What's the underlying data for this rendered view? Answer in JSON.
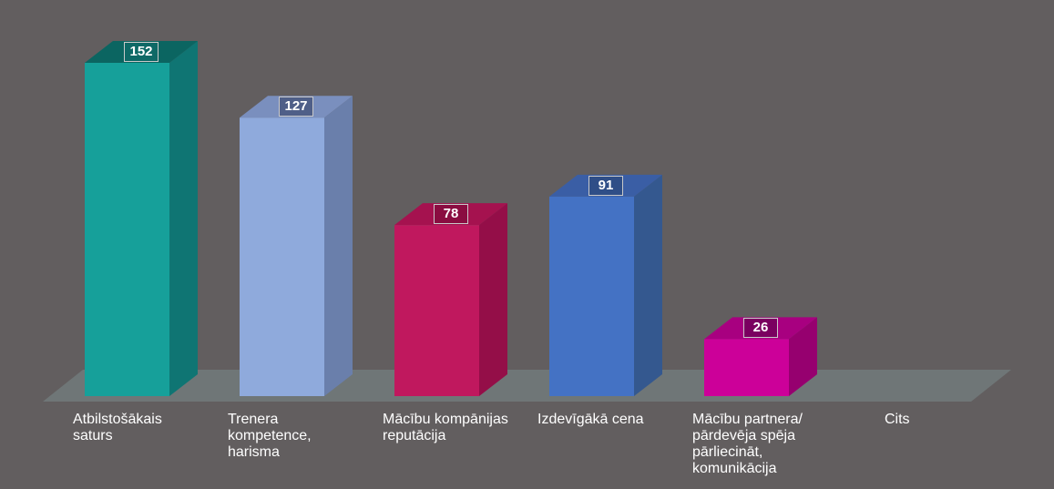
{
  "chart_data": {
    "type": "bar",
    "style": "3d",
    "categories": [
      "Atbilstošākais\nsaturs",
      "Trenera\nkompetence,\nharisma",
      "Mācību kompānijas\nreputācija",
      "Izdevīgākā cena",
      "Mācību partnera/\npārdevēja spēja\npārliecināt,\nkomunikācija",
      "Cits"
    ],
    "values": [
      152,
      127,
      78,
      91,
      26,
      null
    ],
    "value_labels": [
      "152",
      "127",
      "78",
      "91",
      "26",
      ""
    ],
    "colors": [
      {
        "front": "#16a09a",
        "side": "#0f7573",
        "top": "#0b6561",
        "label_bg": "#0e6966"
      },
      {
        "front": "#8faadc",
        "side": "#6a7fab",
        "top": "#7a8fbe",
        "label_bg": "#4f5f88"
      },
      {
        "front": "#c0185e",
        "side": "#940e48",
        "top": "#a5124f",
        "label_bg": "#8a0d41"
      },
      {
        "front": "#4472c4",
        "side": "#34588f",
        "top": "#3a5ea5",
        "label_bg": "#2f4e87"
      },
      {
        "front": "#cc0099",
        "side": "#96006f",
        "top": "#a80080",
        "label_bg": "#7a0060"
      },
      {
        "front": "#888888",
        "side": "#666666",
        "top": "#777777",
        "label_bg": "#555555"
      }
    ],
    "floor_color": "#6f7677",
    "ylim": [
      0,
      152
    ],
    "grid": false,
    "legend": "none",
    "title": "",
    "xlabel": "",
    "ylabel": ""
  }
}
